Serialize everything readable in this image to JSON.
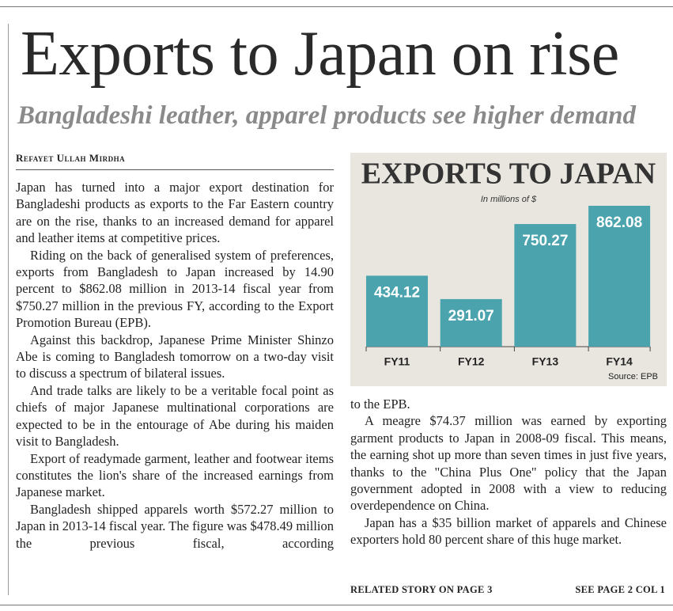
{
  "headline": "Exports to Japan on rise",
  "subheadline": "Bangladeshi leather, apparel products see higher demand",
  "byline": "Refayet Ullah Mirdha",
  "column_1": [
    "Japan has turned into a major export destination for Bangladeshi products as exports to the Far Eastern country are on the rise, thanks to an increased demand for apparel and leather items at competitive prices.",
    "Riding on the back of generalised system of preferences, exports from Bangladesh to Japan increased by 14.90 percent to $862.08 million in 2013-14 fiscal year from $750.27 million in the previous FY, according to the Export Promotion Bureau (EPB).",
    "Against this backdrop, Japanese Prime Minister Shinzo Abe is coming to Bangladesh tomorrow on a two-day visit to discuss a spectrum of bilateral issues.",
    "And trade talks are likely to be a veritable focal point as chiefs of major Japanese multinational corporations are expected to be in the entourage of Abe during his maiden visit to Bangladesh.",
    "Export of readymade garment, leather and footwear items constitutes the lion's share of the increased earnings from Japanese market.",
    "Bangladesh shipped apparels worth $572.27 million to Japan in 2013-14 fiscal year. The figure was $478.49 million the previous fiscal, according"
  ],
  "column_2": [
    "to the EPB.",
    "A meagre $74.37 million was earned by exporting garment products to Japan in 2008-09 fiscal. This means, the earning shot up more than seven times in just five years, thanks to the \"China Plus One\" policy that the Japan government adopted in 2008 with a view to reducing overdependence on China.",
    "Japan has a $35 billion market of apparels and Chinese exporters hold 80 percent share of this huge market."
  ],
  "footer": {
    "left": "RELATED STORY ON PAGE 3",
    "right": "SEE PAGE 2 COL 1"
  },
  "chart_data": {
    "type": "bar",
    "title": "EXPORTS TO JAPAN",
    "subtitle": "In millions of $",
    "source": "Source: EPB",
    "categories": [
      "FY11",
      "FY12",
      "FY13",
      "FY14"
    ],
    "values": [
      434.12,
      291.07,
      750.27,
      862.08
    ],
    "color": "#4aa3ad"
  }
}
